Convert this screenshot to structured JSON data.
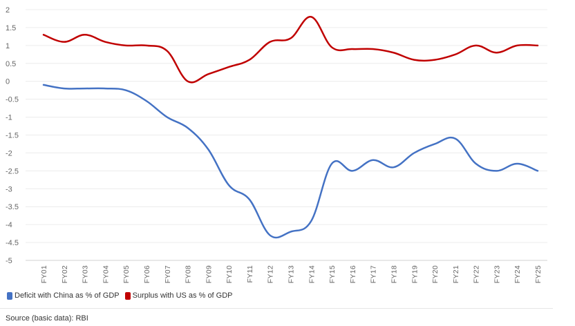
{
  "chart_data": {
    "type": "line",
    "categories": [
      "FY01",
      "FY02",
      "FY03",
      "FY04",
      "FY05",
      "FY06",
      "FY07",
      "FY08",
      "FY09",
      "FY10",
      "FY11",
      "FY12",
      "FY13",
      "FY14",
      "FY15",
      "FY16",
      "FY17",
      "FY18",
      "FY19",
      "FY20",
      "FY21",
      "FY22",
      "FY23",
      "FY24",
      "FY25"
    ],
    "y_ticks": [
      "2",
      "1.5",
      "1",
      "0.5",
      "0",
      "-0.5",
      "-1",
      "-1.5",
      "-2",
      "-2.5",
      "-3",
      "-3.5",
      "-4",
      "-4.5",
      "-5"
    ],
    "ylim": [
      -5,
      2
    ],
    "grid": true,
    "legend_placement": "bottom-left",
    "series": [
      {
        "name": "Deficit with China as % of GDP",
        "color": "#4472c4",
        "values": [
          -0.1,
          -0.2,
          -0.2,
          -0.2,
          -0.25,
          -0.55,
          -1.0,
          -1.3,
          -1.9,
          -2.9,
          -3.3,
          -4.3,
          -4.2,
          -3.9,
          -2.3,
          -2.5,
          -2.2,
          -2.4,
          -2.0,
          -1.75,
          -1.6,
          -2.3,
          -2.5,
          -2.3,
          -2.5
        ]
      },
      {
        "name": "Surplus with US as % of GDP",
        "color": "#c00000",
        "values": [
          1.3,
          1.1,
          1.3,
          1.1,
          1.0,
          1.0,
          0.85,
          0.0,
          0.2,
          0.4,
          0.6,
          1.1,
          1.2,
          1.8,
          0.95,
          0.9,
          0.9,
          0.8,
          0.6,
          0.6,
          0.75,
          1.0,
          0.8,
          1.0,
          1.0
        ]
      }
    ]
  },
  "source_text": "Source (basic data): RBI"
}
